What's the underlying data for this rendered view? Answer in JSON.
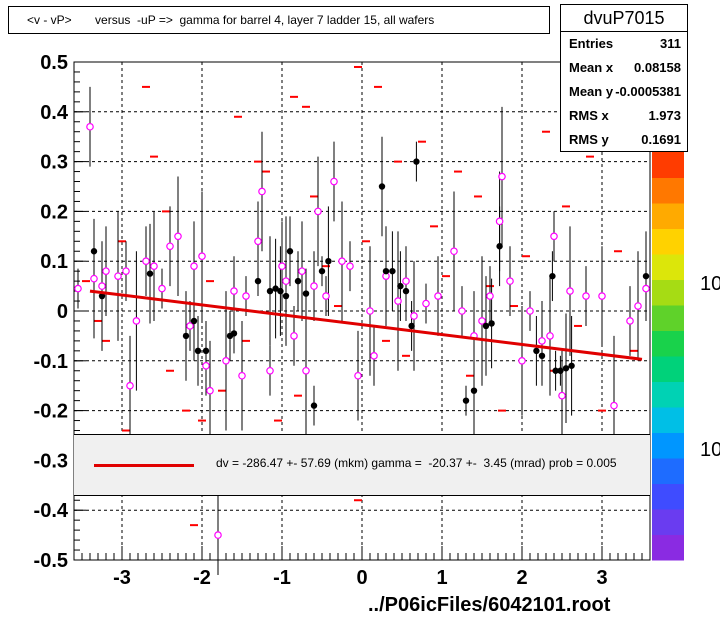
{
  "title": "<v - vP>       versus  -uP =>  gamma for barrel 4, layer 7 ladder 15, all wafers",
  "stats": {
    "name": "dvuP7015",
    "rows": [
      {
        "label": "Entries",
        "value": "311"
      },
      {
        "label": "Mean x",
        "value": "0.08158"
      },
      {
        "label": "Mean y",
        "value": "-0.0005381"
      },
      {
        "label": "RMS x",
        "value": "1.973"
      },
      {
        "label": "RMS y",
        "value": "0.1691"
      }
    ]
  },
  "fit_legend": "dv = -286.47 +- 57.69 (mkm) gamma =  -20.37 +-  3.45 (mrad) prob = 0.005",
  "footer": "../P06icFiles/6042101.root",
  "colors": {
    "fit": "#e00000",
    "profile": "#ff00ff",
    "hist": "#ff0000",
    "black_points": "#000000"
  },
  "palette_labels": [
    "10",
    "10"
  ],
  "chart_data": {
    "type": "scatter",
    "xlim": [
      -3.6,
      3.6
    ],
    "ylim": [
      -0.5,
      0.5
    ],
    "xticks": [
      "-3",
      "-2",
      "-1",
      "0",
      "1",
      "2",
      "3"
    ],
    "yticks": [
      "0.5",
      "0.4",
      "0.3",
      "0.2",
      "0.1",
      "0",
      "-0.1",
      "-0.2",
      "-0.3",
      "-0.4",
      "-0.5"
    ],
    "grid": true,
    "fit_line": {
      "x": [
        -3.4,
        3.5
      ],
      "y": [
        0.04,
        -0.097
      ]
    },
    "profile_points": [
      {
        "x": -3.55,
        "y": 0.045
      },
      {
        "x": -3.4,
        "y": 0.37
      },
      {
        "x": -3.35,
        "y": 0.065
      },
      {
        "x": -3.25,
        "y": 0.05
      },
      {
        "x": -3.2,
        "y": 0.08
      },
      {
        "x": -3.05,
        "y": 0.07
      },
      {
        "x": -2.95,
        "y": 0.08
      },
      {
        "x": -2.9,
        "y": -0.15
      },
      {
        "x": -2.82,
        "y": -0.02
      },
      {
        "x": -2.7,
        "y": 0.1
      },
      {
        "x": -2.6,
        "y": 0.09
      },
      {
        "x": -2.5,
        "y": 0.045
      },
      {
        "x": -2.4,
        "y": 0.13
      },
      {
        "x": -2.3,
        "y": 0.15
      },
      {
        "x": -2.15,
        "y": -0.03
      },
      {
        "x": -2.1,
        "y": 0.09
      },
      {
        "x": -2.0,
        "y": 0.11
      },
      {
        "x": -1.95,
        "y": -0.11
      },
      {
        "x": -1.9,
        "y": -0.16
      },
      {
        "x": -1.7,
        "y": -0.1
      },
      {
        "x": -1.6,
        "y": 0.04
      },
      {
        "x": -1.5,
        "y": -0.13
      },
      {
        "x": -1.45,
        "y": 0.03
      },
      {
        "x": -1.3,
        "y": 0.14
      },
      {
        "x": -1.25,
        "y": 0.24
      },
      {
        "x": -1.15,
        "y": -0.12
      },
      {
        "x": -1.0,
        "y": 0.09
      },
      {
        "x": -0.95,
        "y": 0.06
      },
      {
        "x": -0.85,
        "y": -0.05
      },
      {
        "x": -0.75,
        "y": 0.08
      },
      {
        "x": -0.7,
        "y": -0.12
      },
      {
        "x": -0.6,
        "y": 0.05
      },
      {
        "x": -0.55,
        "y": 0.2
      },
      {
        "x": -0.45,
        "y": 0.03
      },
      {
        "x": -0.35,
        "y": 0.26
      },
      {
        "x": -0.25,
        "y": 0.1
      },
      {
        "x": -0.15,
        "y": 0.09
      },
      {
        "x": -0.05,
        "y": -0.13
      },
      {
        "x": 0.1,
        "y": 0.0
      },
      {
        "x": 0.15,
        "y": -0.09
      },
      {
        "x": 0.3,
        "y": 0.07
      },
      {
        "x": 0.45,
        "y": 0.02
      },
      {
        "x": 0.55,
        "y": 0.06
      },
      {
        "x": 0.65,
        "y": -0.01
      },
      {
        "x": 0.8,
        "y": 0.015
      },
      {
        "x": 0.95,
        "y": 0.03
      },
      {
        "x": 1.15,
        "y": 0.12
      },
      {
        "x": 1.25,
        "y": 0.0
      },
      {
        "x": 1.4,
        "y": -0.05
      },
      {
        "x": 1.5,
        "y": -0.02
      },
      {
        "x": 1.6,
        "y": 0.03
      },
      {
        "x": 1.72,
        "y": 0.18
      },
      {
        "x": 1.75,
        "y": 0.27
      },
      {
        "x": 1.85,
        "y": 0.06
      },
      {
        "x": 2.0,
        "y": -0.1
      },
      {
        "x": 2.1,
        "y": 0.0
      },
      {
        "x": 2.25,
        "y": -0.06
      },
      {
        "x": 2.35,
        "y": -0.05
      },
      {
        "x": 2.4,
        "y": 0.15
      },
      {
        "x": 2.5,
        "y": -0.17
      },
      {
        "x": 2.6,
        "y": 0.04
      },
      {
        "x": 2.8,
        "y": 0.03
      },
      {
        "x": 3.0,
        "y": 0.03
      },
      {
        "x": 3.15,
        "y": -0.19
      },
      {
        "x": 3.35,
        "y": -0.02
      },
      {
        "x": 3.45,
        "y": 0.01
      },
      {
        "x": 3.55,
        "y": 0.045
      },
      {
        "x": -1.8,
        "y": -0.45
      }
    ],
    "black_points": [
      {
        "x": -3.35,
        "y": 0.12
      },
      {
        "x": -3.25,
        "y": 0.03
      },
      {
        "x": -2.65,
        "y": 0.075
      },
      {
        "x": -2.2,
        "y": -0.05
      },
      {
        "x": -2.1,
        "y": -0.02
      },
      {
        "x": -2.05,
        "y": -0.08
      },
      {
        "x": -1.95,
        "y": -0.08
      },
      {
        "x": -1.65,
        "y": -0.05
      },
      {
        "x": -1.6,
        "y": -0.045
      },
      {
        "x": -1.3,
        "y": 0.06
      },
      {
        "x": -1.15,
        "y": 0.04
      },
      {
        "x": -1.08,
        "y": 0.045
      },
      {
        "x": -1.02,
        "y": 0.04
      },
      {
        "x": -0.95,
        "y": 0.03
      },
      {
        "x": -0.9,
        "y": 0.12
      },
      {
        "x": -0.8,
        "y": 0.06
      },
      {
        "x": -0.7,
        "y": 0.035
      },
      {
        "x": -0.6,
        "y": -0.19
      },
      {
        "x": -0.5,
        "y": 0.08
      },
      {
        "x": -0.42,
        "y": 0.1
      },
      {
        "x": 0.25,
        "y": 0.25
      },
      {
        "x": 0.3,
        "y": 0.08
      },
      {
        "x": 0.38,
        "y": 0.08
      },
      {
        "x": 0.48,
        "y": 0.05
      },
      {
        "x": 0.55,
        "y": 0.04
      },
      {
        "x": 0.62,
        "y": -0.03
      },
      {
        "x": 0.68,
        "y": 0.3
      },
      {
        "x": 1.3,
        "y": -0.18
      },
      {
        "x": 1.4,
        "y": -0.16
      },
      {
        "x": 1.55,
        "y": -0.03
      },
      {
        "x": 1.62,
        "y": -0.025
      },
      {
        "x": 1.72,
        "y": 0.13
      },
      {
        "x": 2.18,
        "y": -0.08
      },
      {
        "x": 2.25,
        "y": -0.09
      },
      {
        "x": 2.38,
        "y": 0.07
      },
      {
        "x": 2.42,
        "y": -0.12
      },
      {
        "x": 2.48,
        "y": -0.12
      },
      {
        "x": 2.55,
        "y": -0.115
      },
      {
        "x": 2.62,
        "y": -0.11
      },
      {
        "x": 3.55,
        "y": 0.07
      }
    ],
    "hist_bins": [
      {
        "x": -3.45,
        "y": 0.06
      },
      {
        "x": -3.3,
        "y": -0.02
      },
      {
        "x": -3.2,
        "y": -0.06
      },
      {
        "x": -3.0,
        "y": 0.14
      },
      {
        "x": -2.95,
        "y": -0.24
      },
      {
        "x": -2.7,
        "y": 0.45
      },
      {
        "x": -2.6,
        "y": 0.31
      },
      {
        "x": -2.45,
        "y": 0.2
      },
      {
        "x": -2.4,
        "y": -0.12
      },
      {
        "x": -2.2,
        "y": -0.2
      },
      {
        "x": -2.0,
        "y": -0.22
      },
      {
        "x": -1.9,
        "y": 0.06
      },
      {
        "x": -1.75,
        "y": -0.16
      },
      {
        "x": -1.55,
        "y": 0.39
      },
      {
        "x": -1.45,
        "y": -0.06
      },
      {
        "x": -1.3,
        "y": 0.3
      },
      {
        "x": -1.2,
        "y": 0.28
      },
      {
        "x": -1.05,
        "y": -0.22
      },
      {
        "x": -0.85,
        "y": 0.43
      },
      {
        "x": -0.8,
        "y": -0.17
      },
      {
        "x": -0.7,
        "y": 0.41
      },
      {
        "x": -0.6,
        "y": 0.23
      },
      {
        "x": -0.45,
        "y": 0.09
      },
      {
        "x": -0.3,
        "y": 0.01
      },
      {
        "x": -0.05,
        "y": 0.49
      },
      {
        "x": 0.05,
        "y": 0.14
      },
      {
        "x": 0.2,
        "y": 0.45
      },
      {
        "x": 0.3,
        "y": -0.06
      },
      {
        "x": 0.45,
        "y": 0.3
      },
      {
        "x": 0.55,
        "y": -0.09
      },
      {
        "x": 0.75,
        "y": 0.34
      },
      {
        "x": 0.9,
        "y": 0.17
      },
      {
        "x": 1.05,
        "y": 0.07
      },
      {
        "x": 1.2,
        "y": 0.28
      },
      {
        "x": 1.35,
        "y": -0.13
      },
      {
        "x": 1.45,
        "y": 0.23
      },
      {
        "x": 1.6,
        "y": 0.05
      },
      {
        "x": 1.75,
        "y": -0.2
      },
      {
        "x": 1.9,
        "y": 0.01
      },
      {
        "x": 2.05,
        "y": 0.11
      },
      {
        "x": 2.15,
        "y": -0.07
      },
      {
        "x": 2.3,
        "y": 0.36
      },
      {
        "x": 2.4,
        "y": -0.12
      },
      {
        "x": 2.55,
        "y": 0.21
      },
      {
        "x": 2.7,
        "y": -0.03
      },
      {
        "x": 2.85,
        "y": 0.31
      },
      {
        "x": 3.0,
        "y": -0.2
      },
      {
        "x": 3.2,
        "y": 0.12
      },
      {
        "x": 3.4,
        "y": -0.08
      },
      {
        "x": 3.55,
        "y": 0.44
      },
      {
        "x": -0.05,
        "y": -0.38
      },
      {
        "x": -2.1,
        "y": -0.43
      }
    ]
  }
}
